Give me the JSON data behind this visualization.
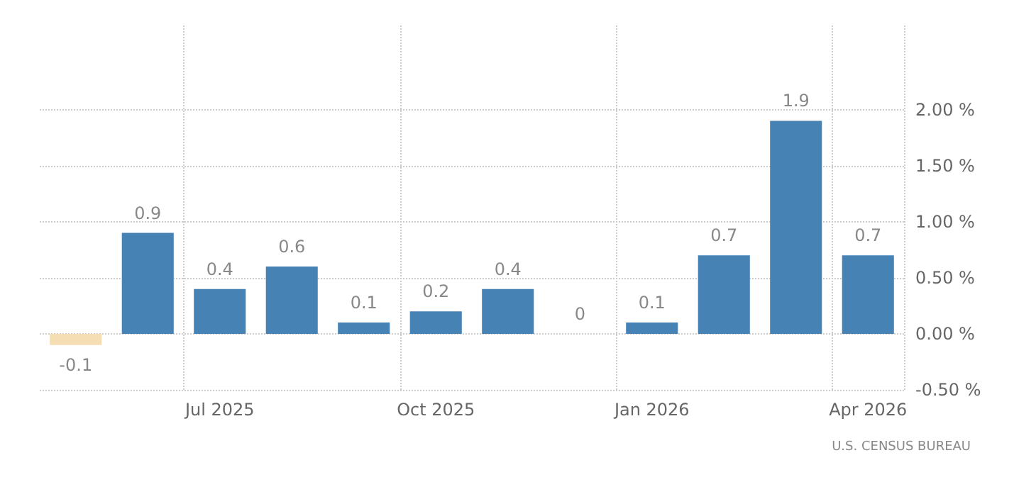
{
  "chart_data": {
    "type": "bar",
    "categories": [
      null,
      null,
      "Jul 2025",
      null,
      null,
      "Oct 2025",
      null,
      null,
      "Jan 2026",
      null,
      null,
      "Apr 2026"
    ],
    "values": [
      -0.1,
      0.9,
      0.4,
      0.6,
      0.1,
      0.2,
      0.4,
      0,
      0.1,
      0.7,
      1.9,
      0.7
    ],
    "colors": [
      "#f5deb3",
      "#4682b4",
      "#4682b4",
      "#4682b4",
      "#4682b4",
      "#4682b4",
      "#4682b4",
      "#4682b4",
      "#4682b4",
      "#4682b4",
      "#4682b4",
      "#4682b4"
    ],
    "ylim": [
      -0.5,
      2.75
    ],
    "yticks": [
      {
        "value": -0.5,
        "label": "-0.50 %"
      },
      {
        "value": 0,
        "label": "0.00 %"
      },
      {
        "value": 0.5,
        "label": "0.50 %"
      },
      {
        "value": 1,
        "label": "1.00 %"
      },
      {
        "value": 1.5,
        "label": "1.50 %"
      },
      {
        "value": 2,
        "label": "2.00 %"
      }
    ],
    "grid": true,
    "data_labels": true,
    "annotations": [
      "U.S. CENSUS BUREAU"
    ]
  }
}
